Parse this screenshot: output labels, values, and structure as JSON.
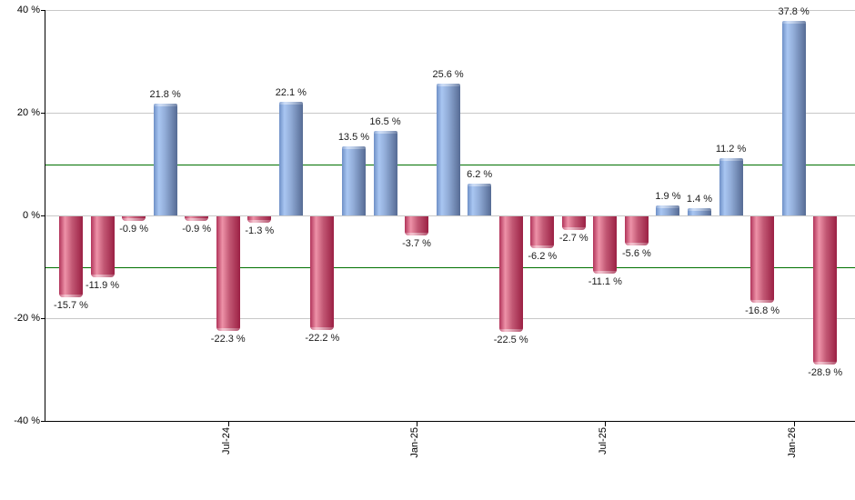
{
  "chart_data": {
    "type": "bar",
    "title": "",
    "xlabel": "",
    "ylabel": "",
    "ylim": [
      -40,
      40
    ],
    "grid": true,
    "legend": false,
    "y_ticks_pct": [
      40,
      20,
      0,
      -20,
      -40
    ],
    "y_tick_labels": [
      "40 %",
      "20 %",
      "0 %",
      "-20 %",
      "-40 %"
    ],
    "values_pct": [
      -15.7,
      -11.9,
      -0.9,
      21.8,
      -0.9,
      -22.3,
      -1.3,
      22.1,
      -22.2,
      13.5,
      16.5,
      -3.7,
      25.6,
      6.2,
      -22.5,
      -6.2,
      -2.7,
      -11.1,
      -5.6,
      1.9,
      1.4,
      11.2,
      -16.8,
      37.8,
      -28.9
    ],
    "bar_value_labels": [
      "-15.7 %",
      "-11.9 %",
      "-0.9 %",
      "21.8 %",
      "-0.9 %",
      "-22.3 %",
      "-1.3 %",
      "22.1 %",
      "-22.2 %",
      "13.5 %",
      "16.5 %",
      "-3.7 %",
      "25.6 %",
      "6.2 %",
      "-22.5 %",
      "-6.2 %",
      "-2.7 %",
      "-11.1 %",
      "-5.6 %",
      "1.9 %",
      "1.4 %",
      "11.2 %",
      "-16.8 %",
      "37.8 %",
      "-28.9 %"
    ],
    "x_tick_labels": [
      {
        "bar_index": 5,
        "label": "Jul-24"
      },
      {
        "bar_index": 11,
        "label": "Jan-25"
      },
      {
        "bar_index": 17,
        "label": "Jul-25"
      },
      {
        "bar_index": 23,
        "label": "Jan-26"
      }
    ],
    "reference_lines_pct": [
      10,
      -10
    ]
  },
  "colors": {
    "positive_bar_light": "#a9c6f2",
    "positive_bar_dark": "#566b94",
    "negative_bar_light": "#ee92a8",
    "negative_bar_dark": "#9b2044",
    "reference_line": "#007000",
    "gridline": "#c8c8c8",
    "axis": "#000000",
    "label_text": "#1a1a1a",
    "background": "#ffffff"
  }
}
